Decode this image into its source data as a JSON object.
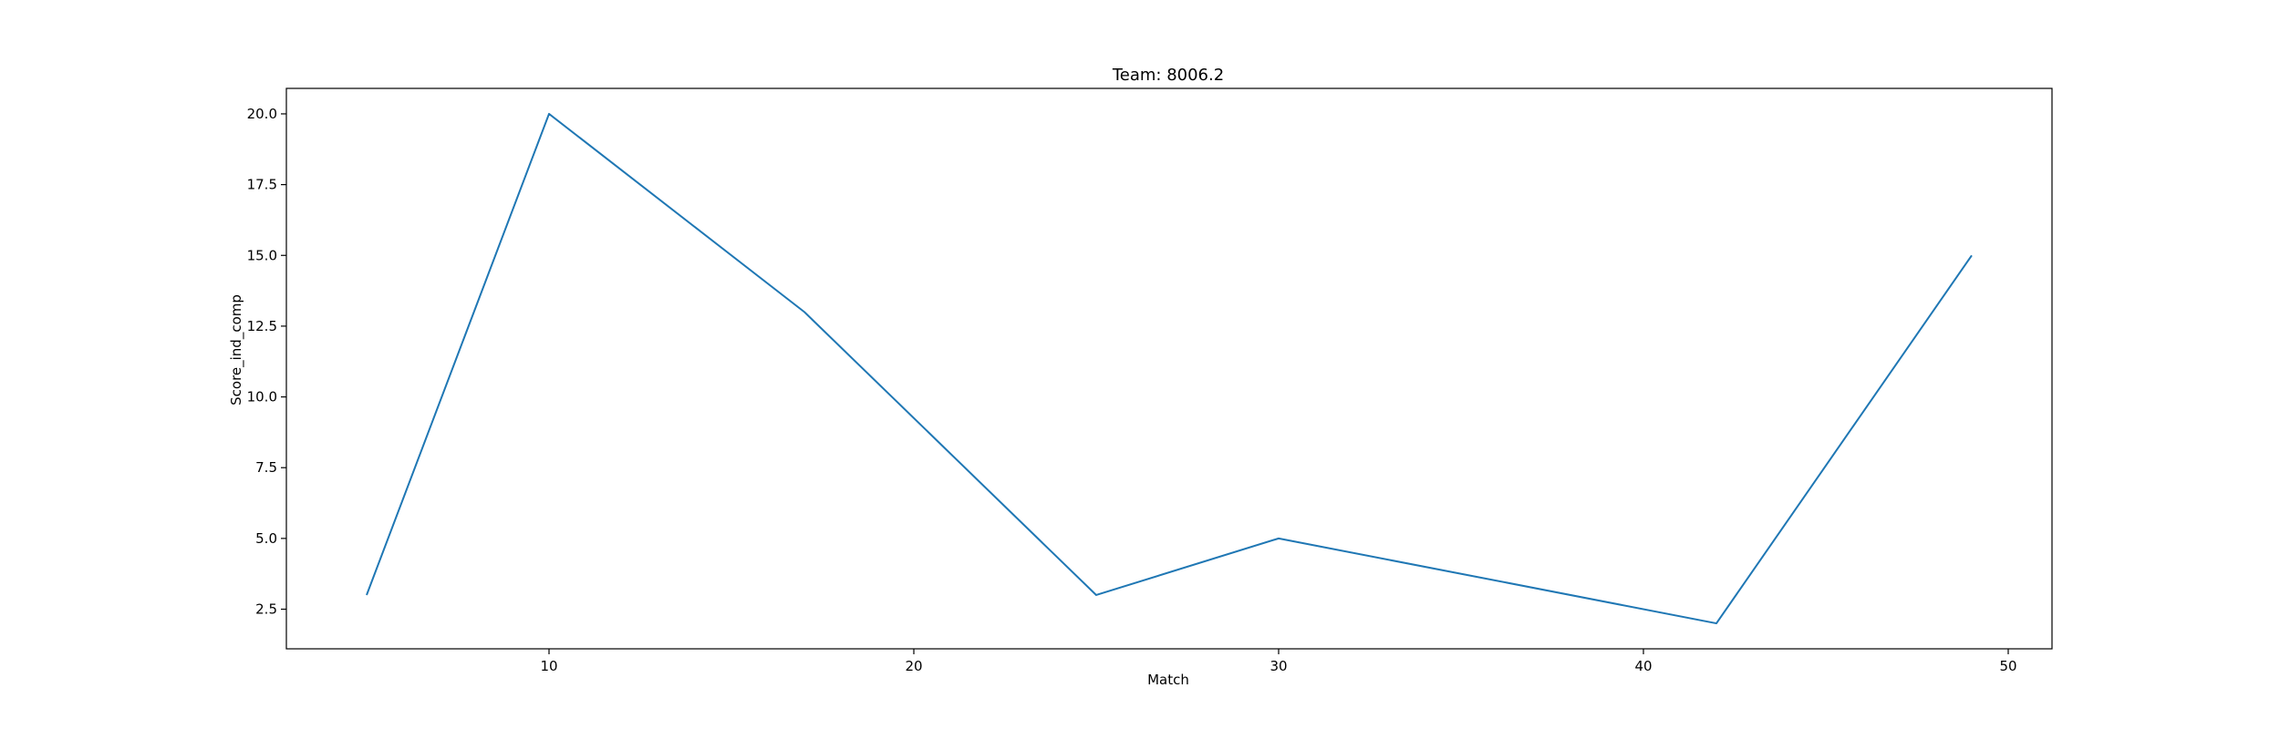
{
  "chart_data": {
    "type": "line",
    "title": "Team: 8006.2",
    "xlabel": "Match",
    "ylabel": "Score_ind_comp",
    "xlim": [
      2.8,
      51.2
    ],
    "ylim": [
      1.1,
      20.9
    ],
    "xticks": [
      10,
      20,
      30,
      40,
      50
    ],
    "yticks": [
      2.5,
      5.0,
      7.5,
      10.0,
      12.5,
      15.0,
      17.5,
      20.0
    ],
    "xtick_labels": [
      "10",
      "20",
      "30",
      "40",
      "50"
    ],
    "ytick_labels": [
      "2.5",
      "5.0",
      "7.5",
      "10.0",
      "12.5",
      "15.0",
      "17.5",
      "20.0"
    ],
    "grid": false,
    "series": [
      {
        "color": "#1f77b4",
        "x": [
          5,
          10,
          17,
          25,
          30,
          42,
          49
        ],
        "y": [
          3,
          20,
          13,
          3,
          5,
          2,
          15
        ]
      }
    ]
  }
}
